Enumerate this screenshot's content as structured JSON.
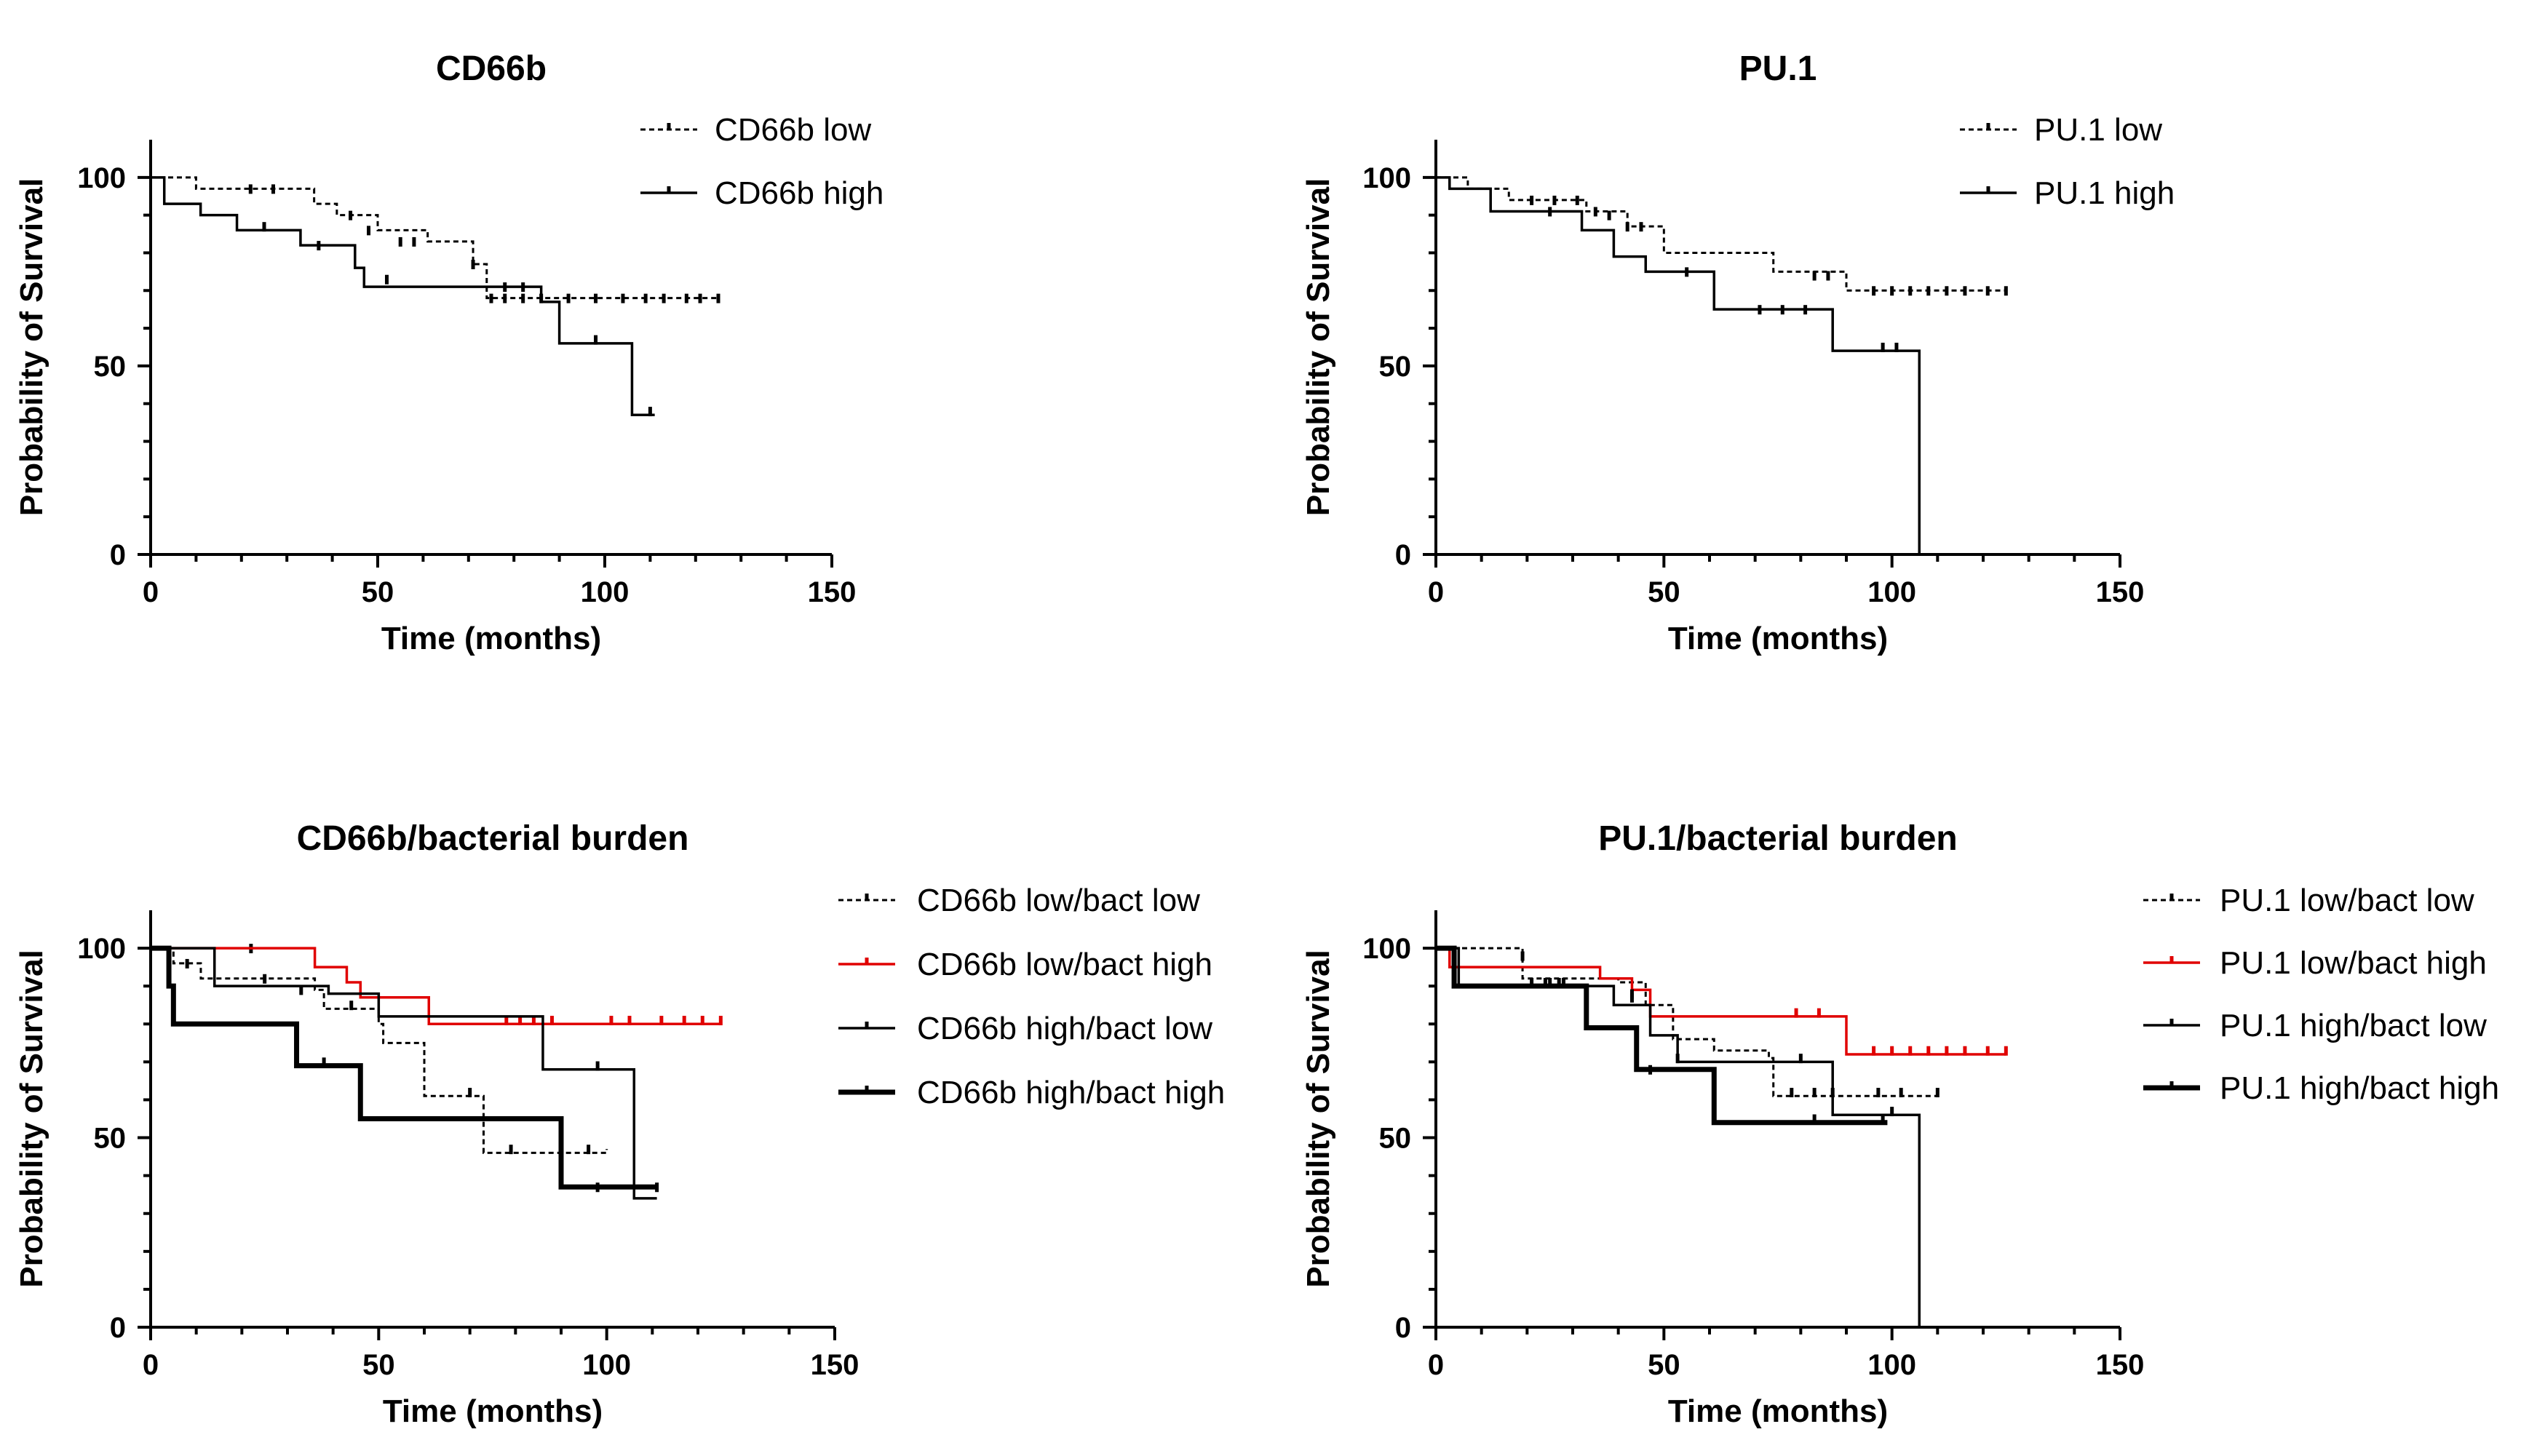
{
  "chart_data": [
    {
      "id": "cd66b",
      "type": "line",
      "subtype": "kaplan-meier",
      "title": "CD66b",
      "xlabel": "Time (months)",
      "ylabel": "Probability of Survival",
      "xlim": [
        0,
        150
      ],
      "ylim": [
        0,
        110
      ],
      "xticks": [
        0,
        50,
        100,
        150
      ],
      "yticks": [
        0,
        50,
        100
      ],
      "grid": false,
      "legend_position": "top-right",
      "series": [
        {
          "name": "CD66b low",
          "style": "dashed",
          "color": "#000000",
          "steps": [
            [
              0,
              100
            ],
            [
              10,
              97
            ],
            [
              36,
              93
            ],
            [
              41,
              90
            ],
            [
              50,
              86
            ],
            [
              61,
              83
            ],
            [
              71,
              77
            ],
            [
              74,
              68
            ],
            [
              125,
              68
            ]
          ],
          "censored": [
            [
              22,
              97
            ],
            [
              27,
              97
            ],
            [
              44,
              90
            ],
            [
              48,
              86
            ],
            [
              55,
              83
            ],
            [
              58,
              83
            ],
            [
              71,
              77
            ],
            [
              75,
              68
            ],
            [
              78,
              68
            ],
            [
              82,
              68
            ],
            [
              86,
              68
            ],
            [
              92,
              68
            ],
            [
              98,
              68
            ],
            [
              104,
              68
            ],
            [
              109,
              68
            ],
            [
              113,
              68
            ],
            [
              118,
              68
            ],
            [
              121,
              68
            ],
            [
              125,
              68
            ]
          ]
        },
        {
          "name": "CD66b high",
          "style": "solid",
          "color": "#000000",
          "steps": [
            [
              0,
              100
            ],
            [
              3,
              93
            ],
            [
              11,
              90
            ],
            [
              19,
              86
            ],
            [
              33,
              82
            ],
            [
              45,
              76
            ],
            [
              47,
              71
            ],
            [
              86,
              67
            ],
            [
              90,
              56
            ],
            [
              106,
              37
            ],
            [
              111,
              37
            ]
          ],
          "censored": [
            [
              25,
              87
            ],
            [
              37,
              82
            ],
            [
              52,
              73
            ],
            [
              78,
              71
            ],
            [
              82,
              71
            ],
            [
              98,
              57
            ],
            [
              110,
              38
            ]
          ]
        }
      ]
    },
    {
      "id": "pu1",
      "type": "line",
      "subtype": "kaplan-meier",
      "title": "PU.1",
      "xlabel": "Time (months)",
      "ylabel": "Probability of Survival",
      "xlim": [
        0,
        150
      ],
      "ylim": [
        0,
        110
      ],
      "xticks": [
        0,
        50,
        100,
        150
      ],
      "yticks": [
        0,
        50,
        100
      ],
      "grid": false,
      "legend_position": "top-right",
      "series": [
        {
          "name": "PU.1 low",
          "style": "dashed",
          "color": "#000000",
          "steps": [
            [
              0,
              100
            ],
            [
              7,
              97
            ],
            [
              16,
              94
            ],
            [
              33,
              91
            ],
            [
              42,
              87
            ],
            [
              50,
              80
            ],
            [
              74,
              75
            ],
            [
              90,
              74
            ],
            [
              90,
              70
            ],
            [
              125,
              70
            ]
          ],
          "censored": [
            [
              21,
              94
            ],
            [
              26,
              94
            ],
            [
              31,
              94
            ],
            [
              35,
              91
            ],
            [
              38,
              90
            ],
            [
              42,
              87
            ],
            [
              45,
              87
            ],
            [
              83,
              74
            ],
            [
              86,
              74
            ],
            [
              96,
              70
            ],
            [
              100,
              70
            ],
            [
              104,
              70
            ],
            [
              108,
              70
            ],
            [
              112,
              70
            ],
            [
              116,
              70
            ],
            [
              121,
              70
            ],
            [
              125,
              70
            ]
          ]
        },
        {
          "name": "PU.1 high",
          "style": "solid",
          "color": "#000000",
          "steps": [
            [
              0,
              100
            ],
            [
              3,
              97
            ],
            [
              12,
              91
            ],
            [
              32,
              86
            ],
            [
              39,
              79
            ],
            [
              46,
              75
            ],
            [
              61,
              65
            ],
            [
              87,
              54
            ],
            [
              106,
              0
            ],
            [
              106,
              0
            ]
          ],
          "censored": [
            [
              25,
              91
            ],
            [
              55,
              75
            ],
            [
              71,
              65
            ],
            [
              76,
              65
            ],
            [
              81,
              65
            ],
            [
              98,
              55
            ],
            [
              101,
              55
            ]
          ]
        }
      ]
    },
    {
      "id": "cd66b_bact",
      "type": "line",
      "subtype": "kaplan-meier",
      "title": "CD66b/bacterial burden",
      "xlabel": "Time (months)",
      "ylabel": "Probability of Survival",
      "xlim": [
        0,
        150
      ],
      "ylim": [
        0,
        110
      ],
      "xticks": [
        0,
        50,
        100,
        150
      ],
      "yticks": [
        0,
        50,
        100
      ],
      "grid": false,
      "legend_position": "right",
      "series": [
        {
          "name": "CD66b low/bact low",
          "style": "dashed",
          "color": "#000000",
          "steps": [
            [
              0,
              100
            ],
            [
              5,
              96
            ],
            [
              11,
              92
            ],
            [
              22,
              92
            ],
            [
              36,
              89
            ],
            [
              38,
              84
            ],
            [
              50,
              80
            ],
            [
              51,
              75
            ],
            [
              60,
              74
            ],
            [
              60,
              61
            ],
            [
              73,
              61
            ],
            [
              73,
              46
            ],
            [
              100,
              46
            ],
            [
              100,
              47
            ]
          ],
          "censored": [
            [
              8,
              96
            ],
            [
              22,
              100
            ],
            [
              25,
              92
            ],
            [
              44,
              85
            ],
            [
              70,
              62
            ],
            [
              79,
              47
            ],
            [
              96,
              47
            ]
          ]
        },
        {
          "name": "CD66b low/bact high",
          "style": "solid",
          "color": "#e00000",
          "steps": [
            [
              0,
              100
            ],
            [
              36,
              95
            ],
            [
              43,
              91
            ],
            [
              46,
              87
            ],
            [
              61,
              80
            ],
            [
              125,
              80
            ]
          ],
          "censored": [
            [
              78,
              81
            ],
            [
              81,
              81
            ],
            [
              84,
              81
            ],
            [
              88,
              81
            ],
            [
              101,
              81
            ],
            [
              105,
              81
            ],
            [
              112,
              81
            ],
            [
              117,
              81
            ],
            [
              121,
              81
            ],
            [
              125,
              81
            ]
          ]
        },
        {
          "name": "CD66b high/bact low",
          "style": "solid",
          "color": "#000000",
          "steps": [
            [
              0,
              100
            ],
            [
              14,
              90
            ],
            [
              30,
              90
            ],
            [
              39,
              88
            ],
            [
              50,
              82
            ],
            [
              86,
              82
            ],
            [
              86,
              68
            ],
            [
              106,
              68
            ],
            [
              106,
              34
            ],
            [
              111,
              34
            ]
          ],
          "censored": [
            [
              33,
              89
            ],
            [
              98,
              69
            ],
            [
              111,
              37
            ]
          ]
        },
        {
          "name": "CD66b high/bact high",
          "style": "thick",
          "color": "#000000",
          "steps": [
            [
              0,
              100
            ],
            [
              4,
              90
            ],
            [
              5,
              80
            ],
            [
              32,
              80
            ],
            [
              32,
              69
            ],
            [
              46,
              69
            ],
            [
              46,
              55
            ],
            [
              90,
              55
            ],
            [
              90,
              37
            ],
            [
              111,
              37
            ]
          ],
          "censored": [
            [
              38,
              70
            ],
            [
              98,
              37
            ]
          ]
        }
      ]
    },
    {
      "id": "pu1_bact",
      "type": "line",
      "subtype": "kaplan-meier",
      "title": "PU.1/bacterial burden",
      "xlabel": "Time (months)",
      "ylabel": "Probability of Survival",
      "xlim": [
        0,
        150
      ],
      "ylim": [
        0,
        110
      ],
      "xticks": [
        0,
        50,
        100,
        150
      ],
      "yticks": [
        0,
        50,
        100
      ],
      "grid": false,
      "legend_position": "right",
      "series": [
        {
          "name": "PU.1 low/bact low",
          "style": "dashed",
          "color": "#000000",
          "steps": [
            [
              0,
              100
            ],
            [
              10,
              100
            ],
            [
              19,
              92
            ],
            [
              40,
              91
            ],
            [
              46,
              85
            ],
            [
              52,
              76
            ],
            [
              61,
              73
            ],
            [
              73,
              71
            ],
            [
              74,
              61
            ],
            [
              110,
              61
            ]
          ],
          "censored": [
            [
              19,
              98
            ],
            [
              25,
              91
            ],
            [
              28,
              91
            ],
            [
              43,
              87
            ],
            [
              78,
              62
            ],
            [
              83,
              62
            ],
            [
              87,
              62
            ],
            [
              97,
              62
            ],
            [
              102,
              62
            ],
            [
              110,
              62
            ]
          ]
        },
        {
          "name": "PU.1 low/bact high",
          "style": "solid",
          "color": "#e00000",
          "steps": [
            [
              0,
              100
            ],
            [
              3,
              95
            ],
            [
              36,
              92
            ],
            [
              43,
              89
            ],
            [
              47,
              82
            ],
            [
              90,
              82
            ],
            [
              90,
              72
            ],
            [
              125,
              72
            ]
          ],
          "censored": [
            [
              79,
              83
            ],
            [
              84,
              83
            ],
            [
              96,
              73
            ],
            [
              100,
              73
            ],
            [
              104,
              73
            ],
            [
              108,
              73
            ],
            [
              112,
              73
            ],
            [
              116,
              73
            ],
            [
              121,
              73
            ],
            [
              125,
              73
            ]
          ]
        },
        {
          "name": "PU.1 high/bact low",
          "style": "solid",
          "color": "#000000",
          "steps": [
            [
              0,
              100
            ],
            [
              5,
              90
            ],
            [
              32,
              90
            ],
            [
              39,
              85
            ],
            [
              47,
              77
            ],
            [
              52,
              77
            ],
            [
              53,
              70
            ],
            [
              86,
              70
            ],
            [
              87,
              56
            ],
            [
              106,
              56
            ],
            [
              106,
              0
            ]
          ],
          "censored": [
            [
              21,
              91
            ],
            [
              24,
              91
            ],
            [
              43,
              88
            ],
            [
              53,
              71
            ],
            [
              80,
              71
            ],
            [
              100,
              57
            ]
          ]
        },
        {
          "name": "PU.1 high/bact high",
          "style": "thick",
          "color": "#000000",
          "steps": [
            [
              0,
              100
            ],
            [
              4,
              90
            ],
            [
              33,
              90
            ],
            [
              33,
              79
            ],
            [
              44,
              79
            ],
            [
              44,
              68
            ],
            [
              61,
              68
            ],
            [
              61,
              54
            ],
            [
              99,
              54
            ]
          ],
          "censored": [
            [
              27,
              91
            ],
            [
              47,
              68
            ],
            [
              83,
              55
            ],
            [
              98,
              55
            ]
          ]
        }
      ]
    }
  ]
}
